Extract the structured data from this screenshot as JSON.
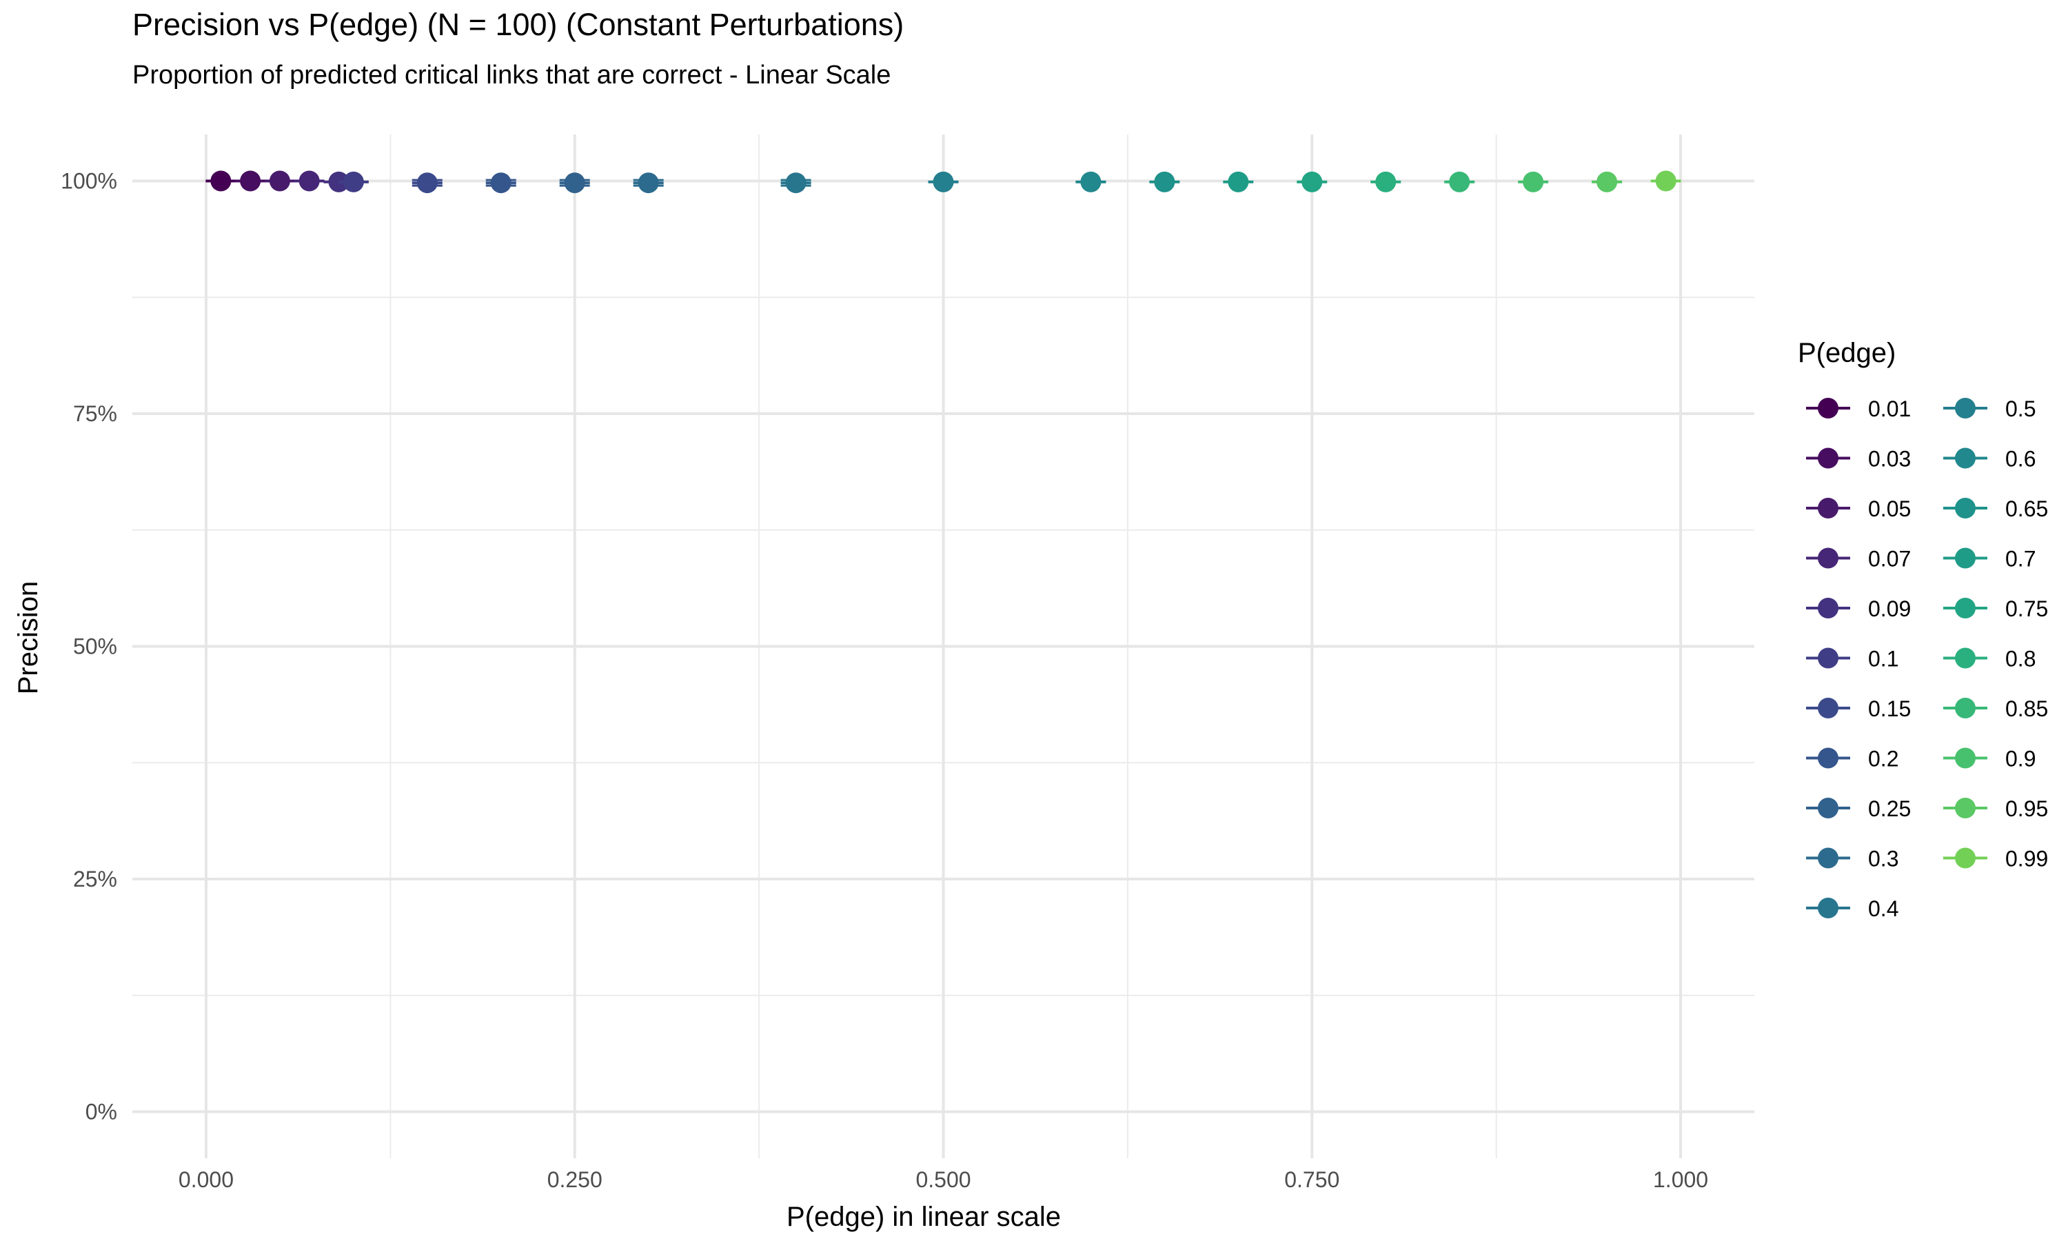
{
  "chart_data": {
    "type": "scatter",
    "title": "Precision vs P(edge) (N = 100) (Constant Perturbations)",
    "subtitle": "Proportion of predicted critical links that are correct - Linear Scale",
    "xlabel": "P(edge) in linear scale",
    "ylabel": "Precision",
    "xlim": [
      -0.05,
      1.05
    ],
    "ylim": [
      -0.05,
      1.05
    ],
    "x_ticks": [
      0.0,
      0.25,
      0.5,
      0.75,
      1.0
    ],
    "x_tick_labels": [
      "0.000",
      "0.250",
      "0.500",
      "0.750",
      "1.000"
    ],
    "y_ticks": [
      0.0,
      0.25,
      0.5,
      0.75,
      1.0
    ],
    "y_tick_labels": [
      "0%",
      "25%",
      "50%",
      "75%",
      "100%"
    ],
    "grid": true,
    "legend": {
      "title": "P(edge)",
      "placement": "right",
      "columns": 2
    },
    "series": [
      {
        "name": "0.01",
        "x": 0.01,
        "y": 1.0,
        "err": 0.0,
        "color": "#440154"
      },
      {
        "name": "0.03",
        "x": 0.03,
        "y": 1.0,
        "err": 0.0,
        "color": "#470d60"
      },
      {
        "name": "0.05",
        "x": 0.05,
        "y": 1.0,
        "err": 0.0,
        "color": "#471a6b"
      },
      {
        "name": "0.07",
        "x": 0.07,
        "y": 1.0,
        "err": 0.0,
        "color": "#462676"
      },
      {
        "name": "0.09",
        "x": 0.09,
        "y": 0.999,
        "err": 0.0,
        "color": "#43327f"
      },
      {
        "name": "0.1",
        "x": 0.1,
        "y": 0.999,
        "err": 0.0,
        "color": "#3f3d86"
      },
      {
        "name": "0.15",
        "x": 0.15,
        "y": 0.998,
        "err": 0.003,
        "color": "#3b4a8b"
      },
      {
        "name": "0.2",
        "x": 0.2,
        "y": 0.998,
        "err": 0.003,
        "color": "#35568c"
      },
      {
        "name": "0.25",
        "x": 0.25,
        "y": 0.998,
        "err": 0.003,
        "color": "#31618d"
      },
      {
        "name": "0.3",
        "x": 0.3,
        "y": 0.998,
        "err": 0.003,
        "color": "#2c6b8e"
      },
      {
        "name": "0.4",
        "x": 0.4,
        "y": 0.998,
        "err": 0.003,
        "color": "#28758e"
      },
      {
        "name": "0.5",
        "x": 0.5,
        "y": 0.999,
        "err": 0.0,
        "color": "#247f8e"
      },
      {
        "name": "0.6",
        "x": 0.6,
        "y": 0.999,
        "err": 0.0,
        "color": "#21888d"
      },
      {
        "name": "0.65",
        "x": 0.65,
        "y": 0.999,
        "err": 0.0,
        "color": "#1e928b"
      },
      {
        "name": "0.7",
        "x": 0.7,
        "y": 0.999,
        "err": 0.0,
        "color": "#1f9c88"
      },
      {
        "name": "0.75",
        "x": 0.75,
        "y": 0.999,
        "err": 0.0,
        "color": "#22a584"
      },
      {
        "name": "0.8",
        "x": 0.8,
        "y": 0.999,
        "err": 0.0,
        "color": "#2aaf7f"
      },
      {
        "name": "0.85",
        "x": 0.85,
        "y": 0.999,
        "err": 0.0,
        "color": "#37b878"
      },
      {
        "name": "0.9",
        "x": 0.9,
        "y": 0.999,
        "err": 0.0,
        "color": "#48c16e"
      },
      {
        "name": "0.95",
        "x": 0.95,
        "y": 0.999,
        "err": 0.0,
        "color": "#5ac864"
      },
      {
        "name": "0.99",
        "x": 0.99,
        "y": 1.0,
        "err": 0.0,
        "color": "#73d056"
      }
    ]
  }
}
